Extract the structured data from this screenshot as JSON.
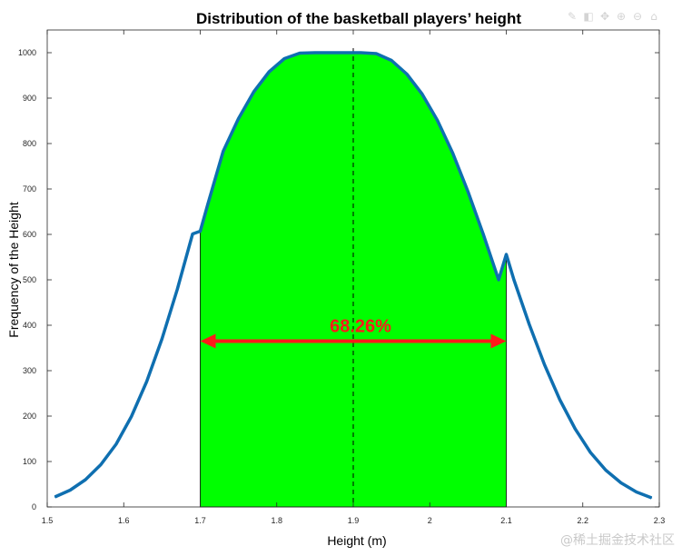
{
  "chart_data": {
    "type": "area",
    "title": "Distribution of the basketball players’ height",
    "xlabel": "Height (m)",
    "ylabel": "Frequency of the Height",
    "xlim": [
      1.5,
      2.3
    ],
    "ylim": [
      0,
      1050
    ],
    "xticks": [
      1.5,
      1.6,
      1.7,
      1.8,
      1.9,
      2.0,
      2.1,
      2.2,
      2.3
    ],
    "xtick_labels": [
      "1.5",
      "1.6",
      "1.7",
      "1.8",
      "1.9",
      "2",
      "2.1",
      "2.2",
      "2.3"
    ],
    "yticks": [
      0,
      100,
      200,
      300,
      400,
      500,
      600,
      700,
      800,
      900,
      1000
    ],
    "yticks_labels": [
      "0",
      "100",
      "200",
      "300",
      "400",
      "500",
      "600",
      "700",
      "800",
      "900",
      "1000"
    ],
    "grid": false,
    "curve": {
      "x": [
        1.51,
        1.53,
        1.55,
        1.57,
        1.59,
        1.61,
        1.63,
        1.65,
        1.67,
        1.69,
        1.7,
        1.71,
        1.73,
        1.75,
        1.77,
        1.79,
        1.81,
        1.83,
        1.85,
        1.87,
        1.89,
        1.9,
        1.91,
        1.93,
        1.95,
        1.97,
        1.99,
        2.01,
        2.03,
        2.05,
        2.07,
        2.09,
        2.1,
        2.11,
        2.13,
        2.15,
        2.17,
        2.19,
        2.21,
        2.23,
        2.25,
        2.27,
        2.29
      ],
      "y": [
        22,
        37,
        60,
        93,
        138,
        199,
        276,
        370,
        479,
        601,
        607,
        667,
        783,
        855,
        914,
        958,
        987,
        999,
        1000,
        1000,
        1000,
        1000,
        1000,
        998,
        983,
        953,
        909,
        851,
        779,
        694,
        600,
        500,
        556,
        500,
        402,
        313,
        236,
        172,
        120,
        81,
        53,
        33,
        20
      ],
      "color": "#0f6fb0"
    },
    "shaded_region": {
      "x_start": 1.7,
      "x_end": 2.1,
      "color": "#00ff00"
    },
    "mean_line": {
      "x": 1.9,
      "style": "dashed"
    },
    "annotation": {
      "text": "68.26%",
      "y": 365,
      "x_start": 1.7,
      "x_end": 2.1,
      "color": "#ff1a1a"
    }
  },
  "toolbar_icons": [
    "edit-icon",
    "data-tip-icon",
    "pan-icon",
    "zoom-in-icon",
    "zoom-out-icon",
    "home-icon"
  ],
  "toolbar_glyphs": [
    "✎",
    "◧",
    "✥",
    "⊕",
    "⊖",
    "⌂"
  ],
  "watermark": "@稀土掘金技术社区"
}
